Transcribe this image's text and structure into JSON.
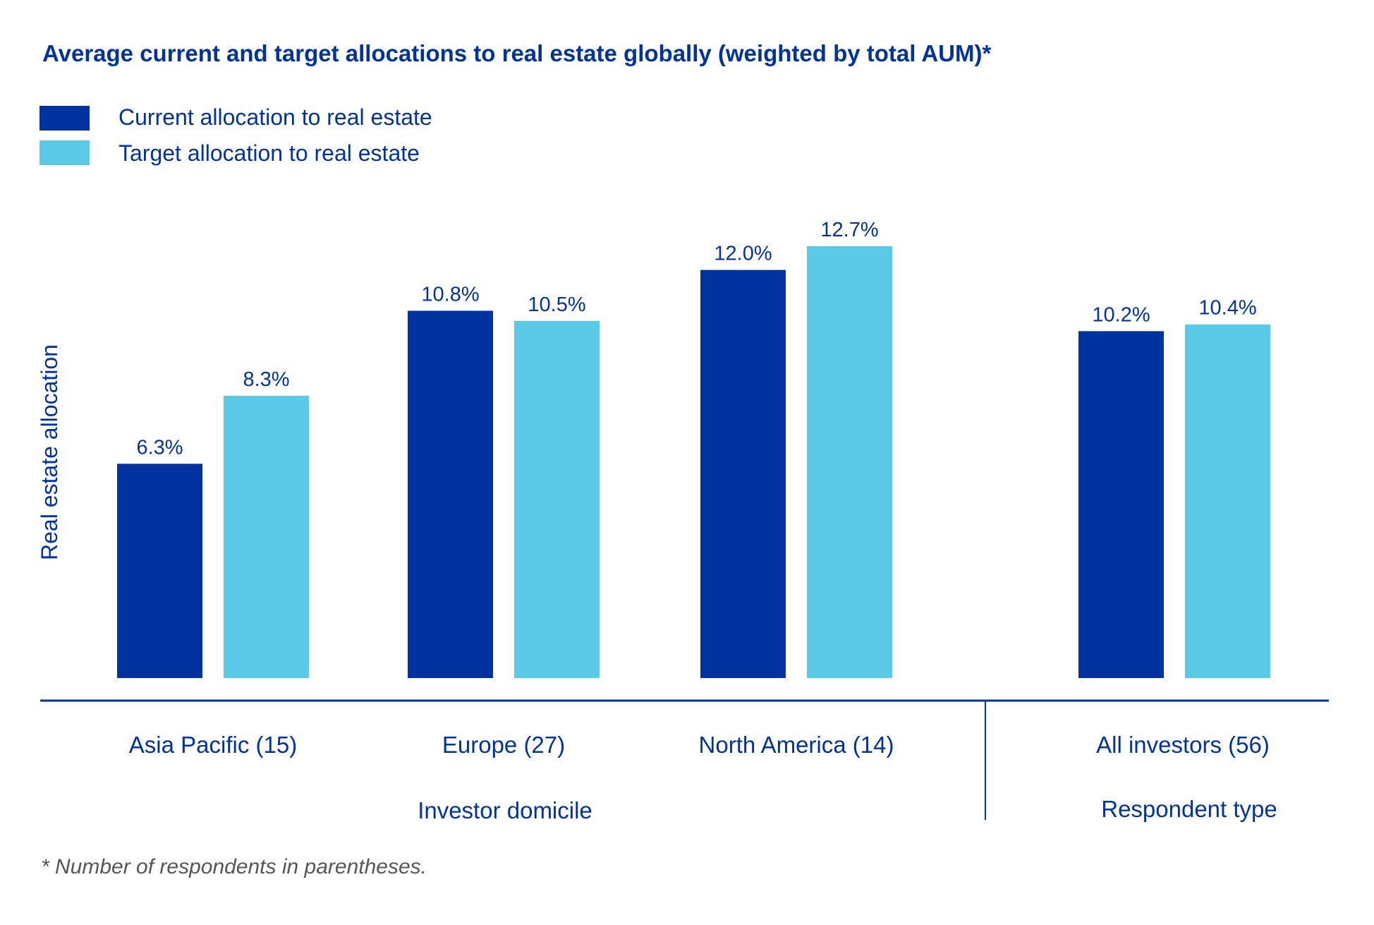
{
  "colors": {
    "current": "#0033A0",
    "target": "#5BC9E8",
    "text": "#0033A0",
    "footnote": "#555555"
  },
  "chart_data": {
    "type": "bar",
    "title": "Average current and target allocations to real estate globally (weighted by total AUM)*",
    "xlabel": "",
    "ylabel": "Real estate allocation",
    "ylim": [
      0,
      13
    ],
    "grid": false,
    "legend_position": "top-left",
    "unit": "%",
    "categories": [
      "Asia Pacific (15)",
      "Europe (27)",
      "North America (14)",
      "All investors (56)"
    ],
    "category_groups": [
      {
        "label": "Investor domicile",
        "categories": [
          "Asia Pacific (15)",
          "Europe (27)",
          "North America (14)"
        ]
      },
      {
        "label": "Respondent type",
        "categories": [
          "All investors (56)"
        ]
      }
    ],
    "series": [
      {
        "name": "Current allocation to real estate",
        "values": [
          6.3,
          10.8,
          12.0,
          10.2
        ],
        "labels": [
          "6.3%",
          "10.8%",
          "12.0%",
          "10.2%"
        ]
      },
      {
        "name": "Target allocation to real estate",
        "values": [
          8.3,
          10.5,
          12.7,
          10.4
        ],
        "labels": [
          "8.3%",
          "10.5%",
          "12.7%",
          "10.4%"
        ]
      }
    ],
    "footnote": "* Number of respondents in parentheses."
  }
}
